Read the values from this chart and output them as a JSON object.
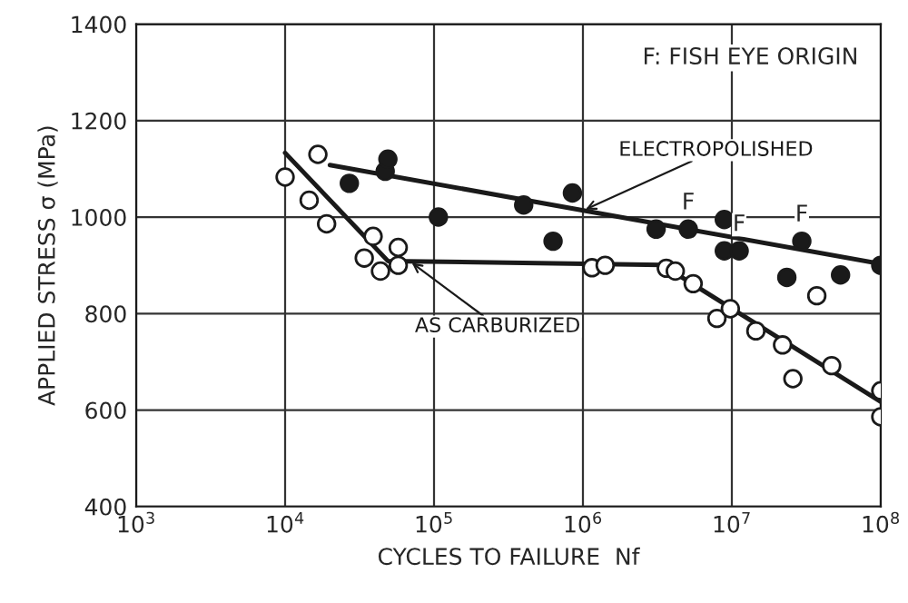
{
  "chart_data": {
    "type": "scatter",
    "xlabel": "CYCLES TO FAILURE  Nf",
    "ylabel": "APPLIED STRESS σ (MPa)",
    "log": "x",
    "xlim": [
      1000,
      100000000
    ],
    "xticks": [
      {
        "value": 1000,
        "label": "10$^{3}$"
      },
      {
        "value": 10000,
        "label": "10$^{4}$"
      },
      {
        "value": 100000,
        "label": "10$^{5}$"
      },
      {
        "value": 1000000,
        "label": "10$^{6}$"
      },
      {
        "value": 10000000,
        "label": "10$^{7}$"
      },
      {
        "value": 100000000,
        "label": "10$^{8}$"
      }
    ],
    "ylim": [
      400,
      1400
    ],
    "yticks": [
      400,
      600,
      800,
      1000,
      1200,
      1400
    ],
    "grid": true,
    "legend": false,
    "marker": "circle",
    "series": [
      {
        "color": "#1a1a1a",
        "x": [
          27000,
          47000,
          49000,
          107000,
          400000,
          630000,
          850000,
          3100000,
          5100000,
          8900000,
          8900000,
          11200000,
          23400000,
          29500000,
          53700000,
          100000000
        ],
        "values": [
          1070,
          1095,
          1120,
          1000,
          1025,
          950,
          1050,
          975,
          975,
          995,
          930,
          930,
          875,
          950,
          880,
          900
        ]
      },
      {
        "color": "#ffffff",
        "x": [
          10000,
          14500,
          16600,
          19000,
          39000,
          34000,
          43700,
          57500,
          57500,
          1150000,
          1410000,
          3630000,
          4170000,
          5500000,
          7940000,
          9770000,
          14500000,
          21900000,
          25700000,
          37200000,
          46800000,
          100000000,
          100000000
        ],
        "values": [
          1083,
          1035,
          1130,
          986,
          960,
          915,
          888,
          937,
          900,
          895,
          900,
          894,
          888,
          862,
          790,
          810,
          764,
          735,
          665,
          837,
          692,
          640,
          586
        ]
      },
      {
        "type": "line",
        "marker": "none",
        "name": "ELECTROPOLISHED",
        "color": "#1a1a1a",
        "x": [
          20000,
          100000000
        ],
        "values": [
          1108,
          903
        ]
      },
      {
        "type": "line",
        "marker": "none",
        "name": "AS CARBURIZED",
        "color": "#1a1a1a",
        "x": [
          10000,
          49000,
          3390000,
          100000000
        ],
        "values": [
          1133,
          909,
          901,
          617
        ]
      }
    ],
    "annotations": [
      "F: FISH EYE ORIGIN",
      {
        "text": "F",
        "x": 5100000,
        "y": 975
      },
      {
        "text": "F",
        "x": 29500000,
        "y": 950
      },
      {
        "text": "F",
        "x": 11200000,
        "y": 930
      }
    ]
  }
}
